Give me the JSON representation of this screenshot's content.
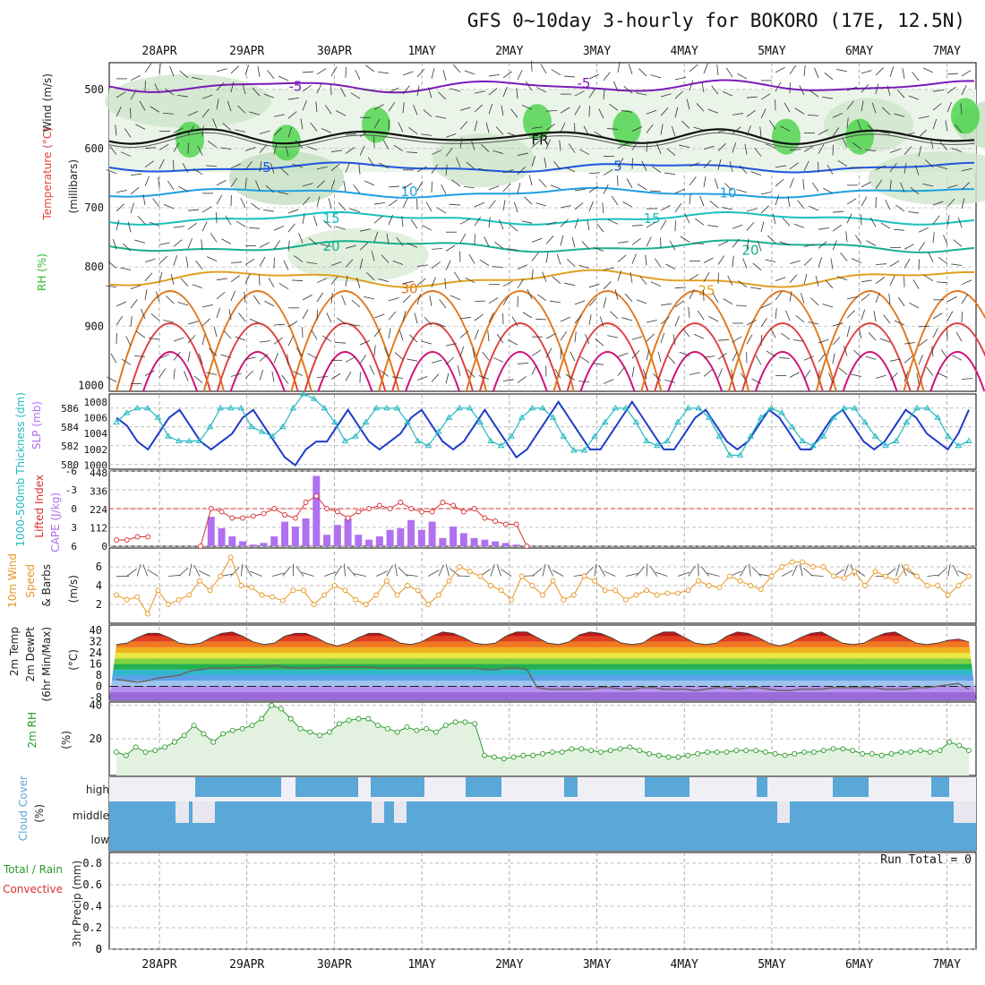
{
  "title": "GFS 0~10day 3-hourly for BOKORO (17E, 12.5N)",
  "dates": [
    "28APR",
    "29APR",
    "30APR",
    "1MAY",
    "2MAY",
    "3MAY",
    "4MAY",
    "5MAY",
    "6MAY",
    "7MAY"
  ],
  "run_total": "Run Total = 0",
  "panel_labels": {
    "p1_wind": "Wind (m/s)",
    "p1_temp": "Temperature (°C)",
    "p1_rh": "RH (%)",
    "p1_mb": "(millibars)",
    "p2_thick": "1000-500mb Thickness (dm)",
    "p2_slp": "SLP (mb)",
    "p3_li": "Lifted Index",
    "p3_cape": "CAPE (J/kg)",
    "p4_a": "10m Wind",
    "p4_b": "Speed",
    "p4_c": "& Barbs",
    "p4_u": "(m/s)",
    "p5_a": "2m Temp",
    "p5_b": "2m DewPt",
    "p5_c": "(6hr Min/Max)",
    "p5_u": "(°C)",
    "p6_a": "2m RH",
    "p6_u": "(%)",
    "p7_a": "Cloud Cover",
    "p7_u": "(%)",
    "p8_a": "Total / Rain",
    "p8_b": "Convective",
    "p8_c": "3hr Precip (mm)",
    "cloud_high": "high",
    "cloud_mid": "middle",
    "cloud_low": "low",
    "fr": "FR"
  },
  "colors": {
    "rh_green": "#2db82d",
    "slp": "#1e3cc8",
    "thickness": "#22b8c0",
    "lifted_index": "#d83030",
    "cape": "#b070f0",
    "wind_speed": "#e89520",
    "cloud": "#5aa8d8",
    "rh2m": "#2a9a2a"
  },
  "chart_data": [
    {
      "type": "line",
      "title": "Temperature / RH / Wind profile",
      "ylabel": "millibars",
      "y_ticks": [
        500,
        600,
        700,
        800,
        900,
        1000
      ],
      "isotherm_labels": [
        "-5",
        "-5",
        "5",
        "5",
        "10",
        "10",
        "15",
        "15",
        "20",
        "20",
        "25",
        "30",
        "FR"
      ]
    },
    {
      "type": "line",
      "title": "1000-500mb Thickness / SLP",
      "thickness_ticks": [
        580,
        582,
        584,
        586
      ],
      "slp_ticks": [
        1000,
        1002,
        1004,
        1006,
        1008
      ],
      "thickness_dm": [
        584.5,
        585.5,
        586,
        586,
        585,
        583,
        582.5,
        582.5,
        582.5,
        584,
        586,
        586,
        586,
        584,
        583.5,
        583,
        584,
        586,
        587.5,
        587,
        586,
        584.5,
        582.5,
        583,
        584.5,
        586,
        586,
        586,
        584.5,
        582.5,
        582,
        583.5,
        585,
        586,
        586,
        584.5,
        582.5,
        582,
        583,
        585,
        586,
        586,
        585,
        583,
        581.5,
        581.5,
        583,
        584.5,
        586,
        586,
        584.5,
        582.5,
        582,
        582.5,
        584.5,
        586,
        586,
        585,
        583,
        581,
        581,
        583,
        585,
        586,
        585.5,
        584,
        582.5,
        582,
        583,
        585,
        586,
        586,
        584.5,
        583,
        582,
        582.5,
        584.5,
        586,
        586,
        585,
        583,
        582,
        582.5
      ],
      "slp_mb": [
        1006,
        1005,
        1003,
        1002,
        1004,
        1006,
        1007,
        1005,
        1003,
        1002,
        1003,
        1004,
        1006,
        1007,
        1005,
        1003,
        1001,
        1000,
        1002,
        1003,
        1003,
        1005,
        1007,
        1005,
        1003,
        1002,
        1003,
        1004,
        1006,
        1007,
        1005,
        1003,
        1002,
        1003,
        1005,
        1007,
        1005,
        1003,
        1001,
        1002,
        1004,
        1006,
        1008,
        1006,
        1004,
        1002,
        1002,
        1004,
        1006,
        1008,
        1006,
        1004,
        1002,
        1002,
        1004,
        1006,
        1007,
        1005,
        1003,
        1002,
        1003,
        1005,
        1007,
        1006,
        1004,
        1002,
        1002,
        1004,
        1006,
        1007,
        1005,
        1003,
        1002,
        1003,
        1005,
        1007,
        1006,
        1004,
        1003,
        1002,
        1004,
        1007
      ]
    },
    {
      "type": "bar",
      "title": "Lifted Index / CAPE",
      "cape_ticks": [
        0,
        112,
        224,
        336,
        448
      ],
      "li_ticks": [
        6,
        3,
        0,
        -3,
        -6
      ],
      "cape_jkg": [
        0,
        0,
        0,
        0,
        0,
        0,
        0,
        0,
        0,
        180,
        110,
        60,
        30,
        10,
        20,
        60,
        150,
        120,
        170,
        430,
        70,
        130,
        170,
        70,
        40,
        60,
        100,
        110,
        160,
        100,
        150,
        50,
        120,
        80,
        50,
        40,
        30,
        20,
        10,
        0,
        0,
        0,
        0,
        0,
        0,
        0,
        0,
        0,
        0,
        0,
        0,
        0,
        0,
        0,
        0,
        0,
        0,
        0,
        0,
        0,
        0,
        0,
        0,
        0,
        0,
        0,
        0,
        0,
        0,
        0,
        0,
        0,
        0,
        0,
        0,
        0,
        0,
        0,
        0,
        0,
        0,
        0
      ],
      "lifted_index": [
        5,
        5,
        4.5,
        4.5,
        null,
        null,
        null,
        null,
        6,
        0,
        0.5,
        1.5,
        1.5,
        1.2,
        0.8,
        0,
        1,
        1.5,
        -1,
        -2,
        0,
        0.5,
        1.5,
        0.5,
        0,
        -0.5,
        0,
        -1,
        0,
        0.5,
        0.5,
        -1,
        -0.5,
        0.5,
        0,
        1.5,
        2,
        2.5,
        2.5,
        6,
        null,
        null,
        null,
        null,
        null,
        null,
        null,
        null,
        null,
        null,
        null,
        null,
        null,
        null,
        null,
        null,
        null,
        null,
        null,
        null,
        null,
        null,
        null,
        null,
        null,
        null,
        null,
        null,
        null,
        null,
        null,
        null,
        null,
        null,
        null,
        null,
        null,
        null,
        null,
        null,
        null,
        null
      ]
    },
    {
      "type": "line",
      "title": "10m Wind Speed",
      "ylabel": "m/s",
      "y_ticks": [
        2,
        4,
        6
      ],
      "speed_ms": [
        3,
        2.5,
        2.8,
        1,
        3.5,
        2,
        2.5,
        3,
        4.5,
        3.5,
        5,
        7,
        4,
        3.8,
        3,
        2.8,
        2.4,
        3.5,
        3.5,
        2,
        3,
        4,
        3.5,
        2.5,
        2,
        3,
        4.5,
        3,
        4,
        3.5,
        2,
        3,
        4.5,
        6,
        5.5,
        5,
        4,
        3.5,
        2.5,
        5,
        4,
        3,
        4.5,
        2.5,
        3,
        5,
        4.5,
        3.5,
        3.5,
        2.5,
        3,
        3.5,
        3,
        3.2,
        3.2,
        3.5,
        4.5,
        4,
        3.8,
        5,
        4.5,
        4,
        3.6,
        5,
        6,
        6.5,
        6.5,
        6,
        6,
        5,
        4.8,
        5.5,
        4,
        5.5,
        5,
        4.5,
        6,
        5,
        4,
        4,
        3,
        4,
        5
      ],
      "ylim": [
        0,
        8
      ]
    },
    {
      "type": "area",
      "title": "2m Temperature / DewPt",
      "ylabel": "°C",
      "y_ticks": [
        -8,
        0,
        8,
        16,
        24,
        32,
        40
      ],
      "temp_c": [
        30,
        31,
        35,
        38,
        38,
        35,
        31,
        30,
        31,
        35,
        38,
        39,
        36,
        32,
        30,
        31,
        36,
        38,
        38,
        35,
        31,
        29,
        31,
        35,
        38,
        38,
        35,
        31,
        30,
        32,
        36,
        39,
        38,
        35,
        31,
        30,
        31,
        36,
        39,
        39,
        35,
        31,
        30,
        32,
        37,
        39,
        38,
        35,
        31,
        30,
        31,
        36,
        39,
        39,
        35,
        31,
        30,
        31,
        36,
        39,
        38,
        35,
        31,
        29,
        31,
        35,
        38,
        39,
        35,
        31,
        30,
        31,
        35,
        38,
        39,
        35,
        31,
        30,
        31,
        33,
        34,
        32
      ],
      "dewpt_c": [
        5,
        4,
        3,
        4,
        6,
        7,
        8,
        11,
        12,
        13,
        13,
        13,
        14,
        14,
        14,
        15,
        14,
        13,
        13,
        13,
        14,
        14,
        14,
        14,
        14,
        13,
        13,
        13,
        13,
        13,
        13,
        13,
        13,
        13,
        13,
        12,
        12,
        13,
        13,
        12,
        -1,
        -2,
        -2,
        -2,
        -2,
        -2,
        -1,
        -1,
        -2,
        -2,
        -1,
        -1,
        -2,
        -2,
        -2,
        -3,
        -2,
        -1,
        -1,
        -2,
        -1,
        -1,
        -2,
        -3,
        -3,
        -2,
        -2,
        -2,
        -1,
        -1,
        -1,
        -1,
        -1,
        -2,
        -2,
        -2,
        -1,
        -1,
        0,
        1,
        2,
        -2
      ]
    },
    {
      "type": "area",
      "title": "2m RH",
      "ylabel": "%",
      "y_ticks": [
        20,
        40
      ],
      "rh_pct": [
        12,
        10,
        15,
        12,
        13,
        15,
        18,
        22,
        28,
        23,
        18,
        23,
        25,
        26,
        28,
        32,
        40,
        38,
        32,
        26,
        24,
        22,
        24,
        29,
        31,
        32,
        32,
        28,
        26,
        24,
        27,
        25,
        26,
        24,
        28,
        30,
        30,
        29,
        10,
        9,
        8,
        9,
        10,
        10,
        11,
        12,
        12,
        14,
        14,
        13,
        12,
        13,
        14,
        15,
        13,
        11,
        10,
        9,
        9,
        10,
        11,
        12,
        12,
        12,
        13,
        13,
        13,
        12,
        11,
        10,
        11,
        12,
        12,
        13,
        14,
        14,
        13,
        11,
        11,
        10,
        11,
        12,
        12,
        13,
        12,
        13,
        18,
        16,
        13
      ]
    },
    {
      "type": "bar",
      "title": "Cloud Cover",
      "categories": [
        "high",
        "middle",
        "low"
      ],
      "run_total": "Run Total = 0"
    },
    {
      "type": "bar",
      "title": "3hr Precip",
      "ylabel": "mm",
      "y_ticks": [
        0,
        0.2,
        0.4,
        0.6,
        0.8
      ],
      "precip_mm": [],
      "ylim": [
        0,
        0.9
      ]
    }
  ]
}
